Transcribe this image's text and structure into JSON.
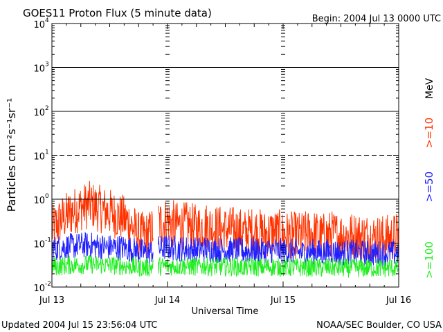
{
  "chart_data": {
    "type": "line",
    "title": "GOES11 Proton Flux (5 minute data)",
    "begin_label": "Begin: 2004 Jul 13 0000 UTC",
    "xlabel": "Universal Time",
    "ylabel": "Particles cm⁻²s⁻¹sr⁻¹",
    "yscale": "log",
    "ylim": [
      0.01,
      10000
    ],
    "yticks": [
      {
        "value": 10000,
        "base": "10",
        "exp": "4"
      },
      {
        "value": 1000,
        "base": "10",
        "exp": "3"
      },
      {
        "value": 100,
        "base": "10",
        "exp": "2"
      },
      {
        "value": 10,
        "base": "10",
        "exp": "1"
      },
      {
        "value": 1,
        "base": "10",
        "exp": "0"
      },
      {
        "value": 0.1,
        "base": "10",
        "exp": "-1"
      },
      {
        "value": 0.01,
        "base": "10",
        "exp": "-2"
      }
    ],
    "xlim_days": [
      0,
      3
    ],
    "xticks": [
      "Jul 13",
      "Jul 14",
      "Jul 15",
      "Jul 16"
    ],
    "thresholds": [
      {
        "value": 1000,
        "style": "solid"
      },
      {
        "value": 100,
        "style": "solid"
      },
      {
        "value": 10,
        "style": "dashed"
      },
      {
        "value": 1,
        "style": "solid"
      }
    ],
    "series": [
      {
        "name": ">=10",
        "color": "#ff3300",
        "times_hours": [
          0,
          2,
          4,
          6,
          8,
          10,
          12,
          14,
          16,
          18,
          20,
          22,
          24,
          26,
          28,
          30,
          32,
          34,
          36,
          38,
          40,
          42,
          44,
          46,
          48,
          50,
          52,
          54,
          56,
          58,
          60,
          62,
          64,
          66,
          68,
          70,
          72
        ],
        "values": [
          0.2,
          0.35,
          0.5,
          0.65,
          0.75,
          0.6,
          0.5,
          0.4,
          0.3,
          0.15,
          0.15,
          0.28,
          0.32,
          0.25,
          0.25,
          0.22,
          0.25,
          0.22,
          0.2,
          0.2,
          0.17,
          0.2,
          0.16,
          0.18,
          0.16,
          0.15,
          0.15,
          0.17,
          0.14,
          0.16,
          0.15,
          0.15,
          0.14,
          0.14,
          0.13,
          0.13,
          0.15
        ]
      },
      {
        "name": ">=50",
        "color": "#2020ff",
        "times_hours": [
          0,
          2,
          4,
          6,
          8,
          10,
          12,
          14,
          16,
          18,
          20,
          22,
          24,
          26,
          28,
          30,
          32,
          34,
          36,
          38,
          40,
          42,
          44,
          46,
          48,
          50,
          52,
          54,
          56,
          58,
          60,
          62,
          64,
          66,
          68,
          70,
          72
        ],
        "values": [
          0.075,
          0.08,
          0.085,
          0.09,
          0.09,
          0.085,
          0.08,
          0.08,
          0.075,
          0.065,
          0.06,
          0.075,
          0.08,
          0.075,
          0.075,
          0.07,
          0.075,
          0.07,
          0.07,
          0.07,
          0.065,
          0.07,
          0.065,
          0.07,
          0.065,
          0.065,
          0.06,
          0.065,
          0.06,
          0.065,
          0.06,
          0.062,
          0.06,
          0.06,
          0.058,
          0.058,
          0.06
        ]
      },
      {
        "name": ">=100",
        "color": "#22ee22",
        "times_hours": [
          0,
          2,
          4,
          6,
          8,
          10,
          12,
          14,
          16,
          18,
          20,
          22,
          24,
          26,
          28,
          30,
          32,
          34,
          36,
          38,
          40,
          42,
          44,
          46,
          48,
          50,
          52,
          54,
          56,
          58,
          60,
          62,
          64,
          66,
          68,
          70,
          72
        ],
        "values": [
          0.03,
          0.03,
          0.032,
          0.032,
          0.033,
          0.032,
          0.031,
          0.031,
          0.03,
          0.028,
          0.028,
          0.03,
          0.03,
          0.03,
          0.03,
          0.029,
          0.03,
          0.029,
          0.029,
          0.029,
          0.028,
          0.029,
          0.028,
          0.029,
          0.028,
          0.028,
          0.028,
          0.028,
          0.027,
          0.028,
          0.027,
          0.027,
          0.027,
          0.027,
          0.027,
          0.027,
          0.028
        ]
      }
    ],
    "legend_unit": "MeV",
    "grid": false
  },
  "footer": {
    "updated": "Updated 2004 Jul 15 23:56:04 UTC",
    "source": "NOAA/SEC Boulder, CO USA"
  }
}
